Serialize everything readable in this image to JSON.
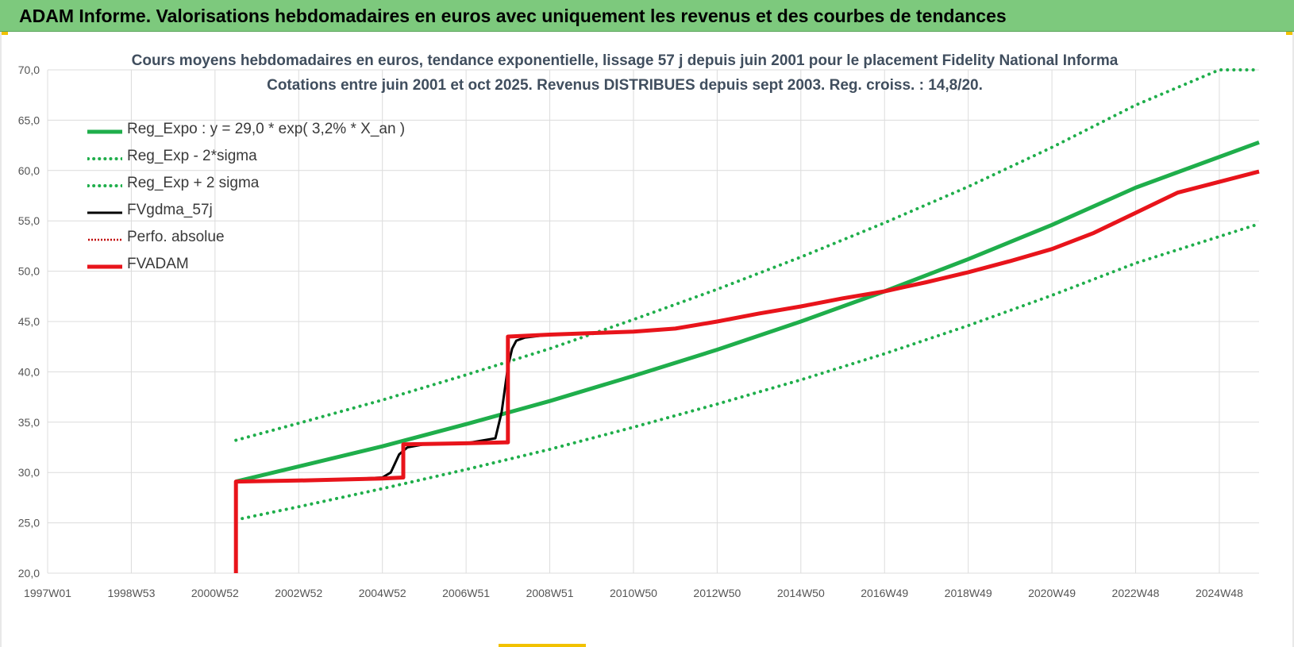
{
  "header": {
    "title": "ADAM Informe. Valorisations hebdomadaires en euros avec uniquement les revenus et des courbes de tendances"
  },
  "chart_data": {
    "type": "line",
    "title": "Cours moyens hebdomadaires en euros, tendance exponentielle, lissage 57 j depuis juin 2001 pour le placement Fidelity National Informa",
    "subtitle": "Cotations entre juin 2001 et oct 2025. Revenus DISTRIBUES depuis sept 2003. Reg. croiss. : 14,8/20.",
    "x_tick_labels": [
      "1997W01",
      "1998W53",
      "2000W52",
      "2002W52",
      "2004W52",
      "2006W51",
      "2008W51",
      "2010W50",
      "2012W50",
      "2014W50",
      "2016W49",
      "2018W49",
      "2020W49",
      "2022W48",
      "2024W48"
    ],
    "x_tick_years": [
      1997.0,
      1999.0,
      2001.0,
      2003.0,
      2005.0,
      2007.0,
      2009.0,
      2011.0,
      2013.0,
      2015.0,
      2017.0,
      2019.0,
      2021.0,
      2023.0,
      2025.0
    ],
    "xlim": [
      1997.0,
      2025.95
    ],
    "ylim": [
      20,
      70
    ],
    "y_ticks": [
      "20,0",
      "25,0",
      "30,0",
      "35,0",
      "40,0",
      "45,0",
      "50,0",
      "55,0",
      "60,0",
      "65,0",
      "70,0"
    ],
    "grid": true,
    "legend_position": "top-left",
    "series": [
      {
        "name": "Reg_Expo : y = 29,0 * exp( 3,2% *  X_an )",
        "color": "#1fae4b",
        "style": "solid",
        "x": [
          2001.5,
          2003,
          2005,
          2007,
          2009,
          2011,
          2013,
          2015,
          2017,
          2019,
          2021,
          2023,
          2025.95
        ],
        "y": [
          29.1,
          30.6,
          32.6,
          34.8,
          37.1,
          39.6,
          42.2,
          45.0,
          48.0,
          51.2,
          54.6,
          58.3,
          62.8
        ]
      },
      {
        "name": "Reg_Exp - 2*sigma",
        "color": "#1fae4b",
        "style": "dotted",
        "x": [
          2001.5,
          2003,
          2005,
          2007,
          2009,
          2011,
          2013,
          2015,
          2017,
          2019,
          2021,
          2023,
          2025.95
        ],
        "y": [
          25.3,
          26.6,
          28.4,
          30.3,
          32.3,
          34.5,
          36.8,
          39.2,
          41.8,
          44.6,
          47.6,
          50.8,
          54.7
        ]
      },
      {
        "name": "Reg_Exp + 2 sigma",
        "color": "#1fae4b",
        "style": "dotted",
        "x": [
          2001.5,
          2003,
          2005,
          2007,
          2009,
          2011,
          2013,
          2015,
          2017,
          2019,
          2021,
          2023,
          2025.0,
          2025.95
        ],
        "y": [
          33.2,
          34.9,
          37.2,
          39.7,
          42.3,
          45.2,
          48.2,
          51.4,
          54.8,
          58.4,
          62.3,
          66.5,
          70.0,
          70.0
        ]
      },
      {
        "name": "FVgdma_57j",
        "color": "#000000",
        "style": "solid",
        "x": [
          2001.5,
          2002,
          2003,
          2004,
          2005.0,
          2005.2,
          2005.4,
          2005.6,
          2006,
          2007,
          2007.7,
          2007.85,
          2008.0,
          2008.1,
          2008.2,
          2008.4,
          2008.8,
          2009,
          2011
        ],
        "y": [
          29.1,
          29.1,
          29.2,
          29.3,
          29.5,
          30.0,
          31.8,
          32.5,
          32.8,
          32.9,
          33.4,
          36.0,
          40.5,
          42.3,
          43.1,
          43.4,
          43.6,
          43.7,
          44.0
        ]
      },
      {
        "name": "Perfo. absolue",
        "color": "#c00000",
        "style": "dotted",
        "x": [],
        "y": []
      },
      {
        "name": "FVADAM",
        "color": "#e8141b",
        "style": "solid",
        "x": [
          2001.5,
          2001.5,
          2003,
          2005.0,
          2005.5,
          2005.5,
          2007.0,
          2008.0,
          2008.0,
          2009,
          2011,
          2012,
          2013,
          2014,
          2015,
          2016,
          2017,
          2018,
          2019,
          2020,
          2021,
          2022,
          2023,
          2024,
          2025.95
        ],
        "y": [
          20.0,
          29.1,
          29.2,
          29.4,
          29.5,
          32.8,
          32.9,
          33.0,
          43.5,
          43.7,
          44.0,
          44.3,
          45.0,
          45.8,
          46.5,
          47.3,
          48.0,
          48.9,
          49.9,
          51.0,
          52.2,
          53.8,
          55.8,
          57.8,
          59.9
        ]
      }
    ]
  }
}
